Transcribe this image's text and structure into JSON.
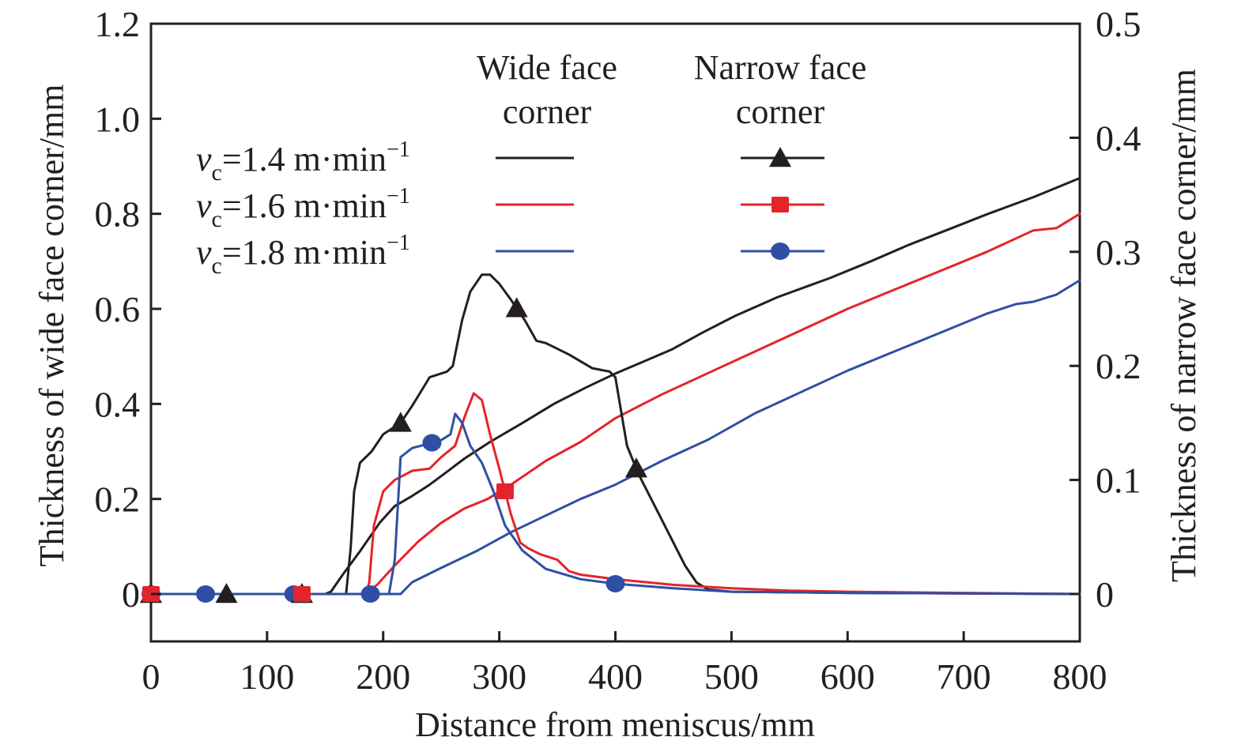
{
  "chart_data": {
    "type": "line",
    "title": "",
    "xlabel": "Distance from meniscus/mm",
    "ylabel_left": "Thickness of wide face corner/mm",
    "ylabel_right": "Thickness of narrow face corner/mm",
    "xlim": [
      0,
      800
    ],
    "ylim_left": [
      -0.1,
      1.2
    ],
    "ylim_right": [
      -0.04167,
      0.5
    ],
    "x_ticks": [
      "0",
      "100",
      "200",
      "300",
      "400",
      "500",
      "600",
      "700",
      "800"
    ],
    "x_tick_values": [
      0,
      100,
      200,
      300,
      400,
      500,
      600,
      700,
      800
    ],
    "y_left_ticks": [
      "0",
      "0.2",
      "0.4",
      "0.6",
      "0.8",
      "1.0",
      "1.2"
    ],
    "y_left_tick_values": [
      0,
      0.2,
      0.4,
      0.6,
      0.8,
      1.0,
      1.2
    ],
    "y_right_ticks": [
      "0",
      "0.1",
      "0.2",
      "0.3",
      "0.4",
      "0.5"
    ],
    "y_right_tick_values": [
      0,
      0.1,
      0.2,
      0.3,
      0.4,
      0.5
    ],
    "grid": false,
    "legend": {
      "placement": "top-center",
      "col_headers": [
        {
          "line1": "Wide face",
          "line2": "corner"
        },
        {
          "line1": "Narrow face",
          "line2": "corner"
        }
      ],
      "rows": [
        {
          "prefix": "v",
          "sub": "c",
          "text": "=1.4 m·min",
          "sup": "−1"
        },
        {
          "prefix": "v",
          "sub": "c",
          "text": "=1.6 m·min",
          "sup": "−1"
        },
        {
          "prefix": "v",
          "sub": "c",
          "text": "=1.8 m·min",
          "sup": "−1"
        }
      ]
    },
    "colors": {
      "v1.4": "#231f20",
      "v1.6": "#e3242b",
      "v1.8": "#2e4fa3",
      "axis": "#231f20"
    },
    "series": [
      {
        "name": "Wide face corner vc=1.4",
        "axis": "left",
        "color_key": "v1.4",
        "marker": "none",
        "x": [
          0,
          150,
          155,
          165,
          180,
          197,
          210,
          224,
          240,
          251,
          270,
          292,
          320,
          347,
          375,
          401,
          425,
          449,
          475,
          503,
          540,
          585,
          620,
          653,
          690,
          721,
          760,
          800
        ],
        "y": [
          0,
          0,
          0.005,
          0.04,
          0.09,
          0.15,
          0.185,
          0.205,
          0.23,
          0.25,
          0.285,
          0.32,
          0.36,
          0.4,
          0.435,
          0.465,
          0.49,
          0.515,
          0.55,
          0.585,
          0.625,
          0.665,
          0.7,
          0.735,
          0.77,
          0.8,
          0.835,
          0.875
        ]
      },
      {
        "name": "Wide face corner vc=1.6",
        "axis": "left",
        "color_key": "v1.6",
        "marker": "none",
        "x": [
          0,
          185,
          195,
          210,
          230,
          250,
          270,
          290,
          310,
          340,
          370,
          400,
          440,
          480,
          520,
          560,
          600,
          640,
          680,
          720,
          760,
          780,
          800
        ],
        "y": [
          0,
          0,
          0.02,
          0.06,
          0.11,
          0.15,
          0.18,
          0.2,
          0.23,
          0.28,
          0.32,
          0.37,
          0.42,
          0.465,
          0.51,
          0.555,
          0.6,
          0.64,
          0.68,
          0.72,
          0.765,
          0.77,
          0.8
        ]
      },
      {
        "name": "Wide face corner vc=1.8",
        "axis": "left",
        "color_key": "v1.8",
        "marker": "none",
        "x": [
          0,
          215,
          225,
          250,
          280,
          310,
          340,
          370,
          400,
          440,
          480,
          520,
          560,
          600,
          640,
          680,
          720,
          745,
          760,
          780,
          800
        ],
        "y": [
          0,
          0,
          0.025,
          0.055,
          0.09,
          0.13,
          0.165,
          0.2,
          0.23,
          0.28,
          0.325,
          0.38,
          0.425,
          0.47,
          0.51,
          0.55,
          0.59,
          0.61,
          0.615,
          0.63,
          0.66
        ]
      },
      {
        "name": "Narrow face corner vc=1.4",
        "axis": "right",
        "color_key": "v1.4",
        "marker": "triangle",
        "x": [
          0,
          150,
          168,
          172,
          175,
          180,
          190,
          200,
          215,
          225,
          240,
          255,
          260,
          262,
          268,
          275,
          285,
          292,
          300,
          310,
          322,
          332,
          340,
          360,
          380,
          395,
          400,
          405,
          410,
          420,
          430,
          445,
          460,
          470,
          480,
          500,
          600,
          800
        ],
        "y": [
          0,
          0,
          0,
          0.04,
          0.09,
          0.115,
          0.125,
          0.14,
          0.15,
          0.165,
          0.19,
          0.195,
          0.2,
          0.21,
          0.24,
          0.265,
          0.28,
          0.28,
          0.272,
          0.258,
          0.24,
          0.222,
          0.22,
          0.21,
          0.198,
          0.195,
          0.19,
          0.16,
          0.13,
          0.105,
          0.085,
          0.055,
          0.025,
          0.01,
          0.004,
          0.002,
          0.001,
          0.0
        ],
        "marker_x": [
          0,
          65,
          130,
          215,
          315,
          418
        ]
      },
      {
        "name": "Narrow face corner vc=1.6",
        "axis": "right",
        "color_key": "v1.6",
        "marker": "square",
        "x": [
          0,
          185,
          188,
          192,
          200,
          210,
          225,
          240,
          250,
          262,
          270,
          278,
          285,
          292,
          300,
          310,
          318,
          325,
          335,
          350,
          360,
          370,
          400,
          450,
          500,
          550,
          600,
          700,
          800
        ],
        "y": [
          0,
          0,
          0.01,
          0.06,
          0.09,
          0.1,
          0.108,
          0.11,
          0.12,
          0.13,
          0.155,
          0.176,
          0.17,
          0.14,
          0.11,
          0.07,
          0.045,
          0.04,
          0.035,
          0.03,
          0.02,
          0.017,
          0.013,
          0.008,
          0.005,
          0.003,
          0.002,
          0.001,
          0.0
        ],
        "marker_x": [
          0,
          130,
          305
        ]
      },
      {
        "name": "Narrow face corner vc=1.8",
        "axis": "right",
        "color_key": "v1.8",
        "marker": "circle",
        "x": [
          0,
          205,
          210,
          215,
          225,
          240,
          250,
          258,
          262,
          268,
          275,
          285,
          295,
          305,
          320,
          340,
          370,
          400,
          450,
          500,
          600,
          800
        ],
        "y": [
          0,
          0,
          0.03,
          0.12,
          0.128,
          0.132,
          0.135,
          0.14,
          0.158,
          0.15,
          0.13,
          0.115,
          0.09,
          0.06,
          0.038,
          0.022,
          0.013,
          0.009,
          0.005,
          0.002,
          0.001,
          0.0
        ],
        "marker_x": [
          0,
          47,
          123,
          189,
          242,
          400
        ]
      }
    ]
  }
}
